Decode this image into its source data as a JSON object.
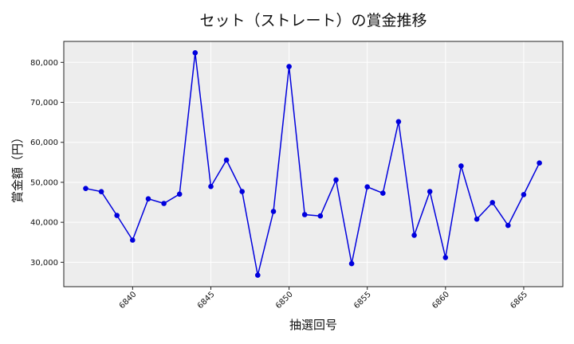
{
  "chart_data": {
    "type": "line",
    "title": "セット（ストレート）の賞金推移",
    "xlabel": "抽選回号",
    "ylabel": "賞金額（円）",
    "x": [
      6837,
      6838,
      6839,
      6840,
      6841,
      6842,
      6843,
      6844,
      6845,
      6846,
      6847,
      6848,
      6849,
      6850,
      6851,
      6852,
      6853,
      6854,
      6855,
      6856,
      6857,
      6858,
      6859,
      6860,
      6861,
      6862,
      6863,
      6864,
      6865,
      6866
    ],
    "series": [
      {
        "name": "賞金額",
        "values": [
          48450,
          47650,
          41700,
          35560,
          45860,
          44720,
          47050,
          82390,
          48950,
          55570,
          47690,
          26760,
          42720,
          78940,
          41920,
          41580,
          50600,
          29660,
          48850,
          47290,
          65160,
          36760,
          47690,
          31190,
          54090,
          40790,
          44940,
          39210,
          46920,
          54820
        ],
        "color": "#0000dd",
        "marker": "circle"
      }
    ],
    "xticks": [
      6840,
      6845,
      6850,
      6855,
      6860,
      6865
    ],
    "yticks": [
      30000,
      40000,
      50000,
      60000,
      70000,
      80000
    ],
    "ytick_labels": [
      "30,000",
      "40,000",
      "50,000",
      "60,000",
      "70,000",
      "80,000"
    ],
    "xlim": [
      6835.6,
      6867.5
    ],
    "ylim": [
      23900,
      85240
    ],
    "grid": true,
    "legend": "none",
    "plot_background": "#ededed",
    "grid_color": "#ffffff"
  }
}
